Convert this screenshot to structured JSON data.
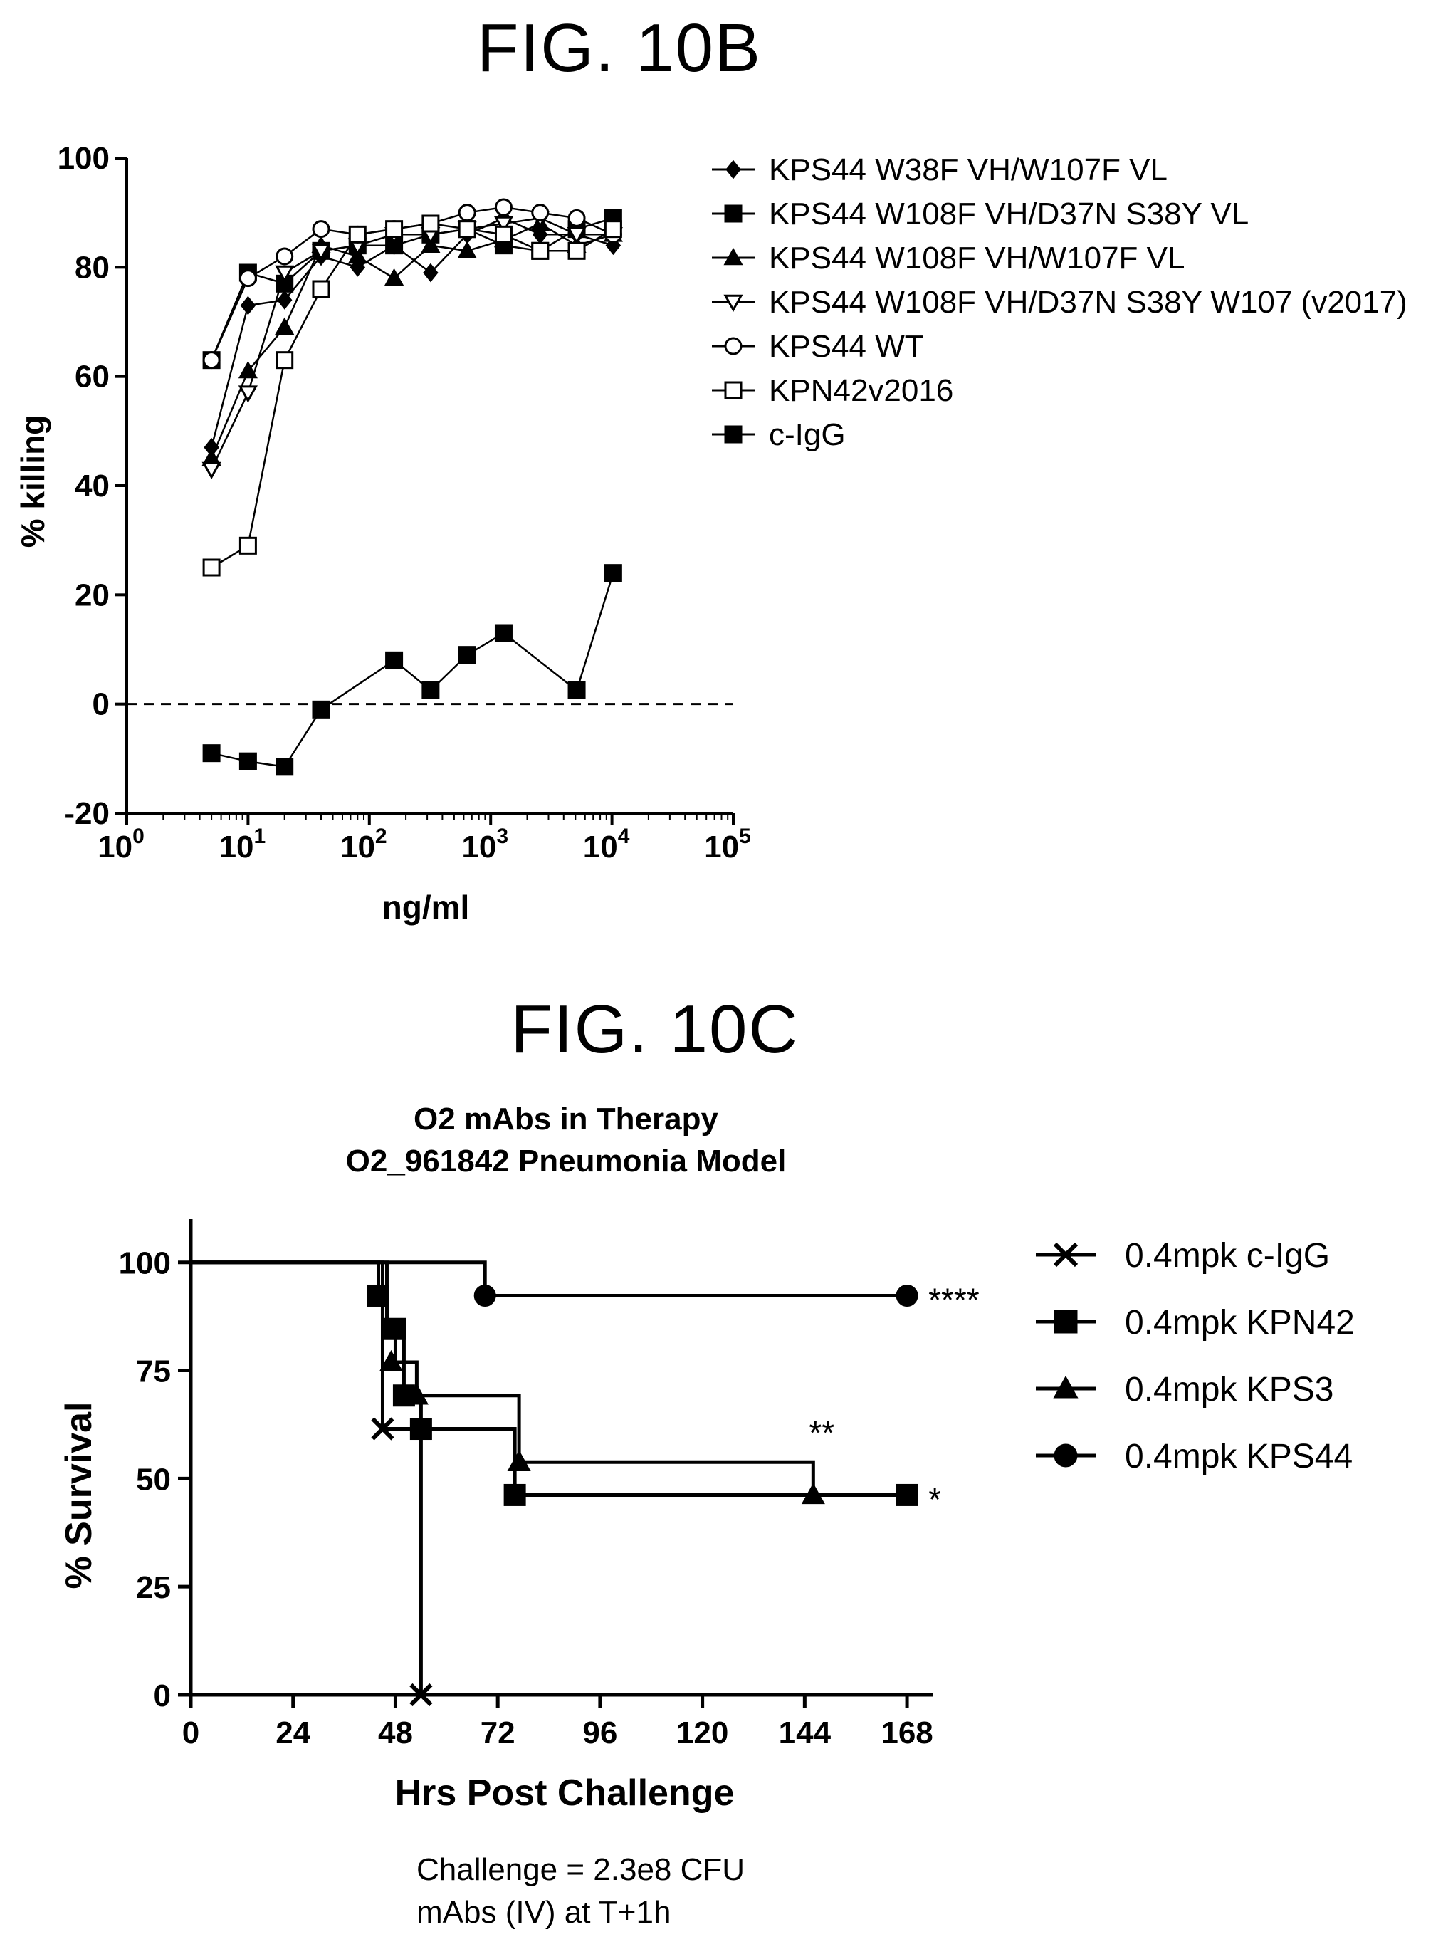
{
  "chart_data": [
    {
      "figure_label": "FIG. 10B",
      "type": "line",
      "title": "",
      "xlabel": "ng/ml",
      "ylabel": "% killing",
      "xscale": "log",
      "xlim": [
        1,
        100000
      ],
      "ylim": [
        -20,
        100
      ],
      "yticks": [
        -20,
        0,
        20,
        40,
        60,
        80,
        100
      ],
      "xticks": [
        {
          "base": "10",
          "exp": "0"
        },
        {
          "base": "10",
          "exp": "1"
        },
        {
          "base": "10",
          "exp": "2"
        },
        {
          "base": "10",
          "exp": "3"
        },
        {
          "base": "10",
          "exp": "4"
        },
        {
          "base": "10",
          "exp": "5"
        }
      ],
      "reference_line": {
        "y": 0,
        "style": "dashed"
      },
      "legend_position": "top-right outside",
      "x": [
        5,
        10,
        20,
        40,
        80,
        160,
        320,
        640,
        1280,
        2560,
        5120,
        10240
      ],
      "series": [
        {
          "name": "KPS44 W38F VH/W107F VL",
          "marker": "diamond-filled",
          "values": [
            47,
            73,
            74,
            82,
            80,
            84,
            79,
            86,
            89,
            86,
            86,
            84
          ]
        },
        {
          "name": "KPS44 W108F VH/D37N S38Y VL",
          "marker": "square-filled",
          "values": [
            63,
            79,
            77,
            83,
            84,
            84,
            86,
            87,
            84,
            83,
            87,
            89
          ]
        },
        {
          "name": "KPS44 W108F VH/W107F VL",
          "marker": "triangle-filled",
          "values": [
            45,
            61,
            69,
            84,
            82,
            78,
            84,
            83,
            85,
            88,
            84,
            86
          ]
        },
        {
          "name": "KPS44 W108F VH/D37N S38Y W107 (v2017)",
          "marker": "triangle-down-open",
          "values": [
            43,
            57,
            79,
            83,
            84,
            86,
            86,
            87,
            88,
            89,
            86,
            86
          ]
        },
        {
          "name": "KPS44 WT",
          "marker": "circle-open",
          "values": [
            63,
            78,
            82,
            87,
            86,
            87,
            88,
            90,
            91,
            90,
            89,
            86
          ]
        },
        {
          "name": "KPN42v2016",
          "marker": "square-open",
          "values": [
            25,
            29,
            63,
            76,
            86,
            87,
            88,
            87,
            86,
            83,
            83,
            87
          ]
        },
        {
          "name": "c-IgG",
          "marker": "square-filled",
          "values": [
            -9,
            -10.5,
            -11.5,
            -1,
            null,
            8,
            2.5,
            9,
            13,
            null,
            2.5,
            24
          ]
        }
      ]
    },
    {
      "figure_label": "FIG. 10C",
      "type": "line",
      "subtype": "survival-step",
      "title": "O2 mAbs in Therapy",
      "subtitle": "O2_961842 Pneumonia Model",
      "xlabel": "Hrs Post Challenge",
      "ylabel": "% Survival",
      "xlim": [
        0,
        174
      ],
      "ylim": [
        0,
        110
      ],
      "xticks": [
        0,
        24,
        48,
        72,
        96,
        120,
        144,
        168
      ],
      "yticks": [
        0,
        25,
        50,
        75,
        100
      ],
      "legend_position": "right",
      "series": [
        {
          "name": "0.4mpk c-IgG",
          "marker": "x",
          "steps": [
            [
              0,
              100
            ],
            [
              45,
              61.5
            ],
            [
              54,
              0
            ]
          ],
          "points": [
            [
              45,
              61.5
            ],
            [
              54,
              0
            ]
          ],
          "significance": ""
        },
        {
          "name": "0.4mpk KPN42",
          "marker": "square-filled",
          "steps": [
            [
              0,
              100
            ],
            [
              44,
              92.3
            ],
            [
              46,
              84.6
            ],
            [
              50,
              69.2
            ],
            [
              54,
              61.5
            ],
            [
              76,
              46.2
            ],
            [
              168,
              46.2
            ]
          ],
          "points": [
            [
              44,
              92.3
            ],
            [
              48,
              84.6
            ],
            [
              50,
              69.2
            ],
            [
              54,
              61.5
            ],
            [
              76,
              46.2
            ],
            [
              168,
              46.2
            ]
          ],
          "significance": "*"
        },
        {
          "name": "0.4mpk KPS3",
          "marker": "triangle-filled",
          "steps": [
            [
              0,
              100
            ],
            [
              46,
              84.6
            ],
            [
              48,
              76.9
            ],
            [
              53,
              69.2
            ],
            [
              77,
              53.8
            ],
            [
              146,
              46.2
            ]
          ],
          "points": [
            [
              47,
              76.9
            ],
            [
              53,
              69.2
            ],
            [
              77,
              53.8
            ],
            [
              146,
              46.2
            ]
          ],
          "significance": "**"
        },
        {
          "name": "0.4mpk KPS44",
          "marker": "circle-filled",
          "steps": [
            [
              0,
              100
            ],
            [
              69,
              92.3
            ],
            [
              168,
              92.3
            ]
          ],
          "points": [
            [
              69,
              92.3
            ],
            [
              168,
              92.3
            ]
          ],
          "significance": "****"
        }
      ],
      "notes": [
        "Challenge = 2.3e8 CFU",
        "mAbs (IV) at T+1h"
      ]
    }
  ]
}
